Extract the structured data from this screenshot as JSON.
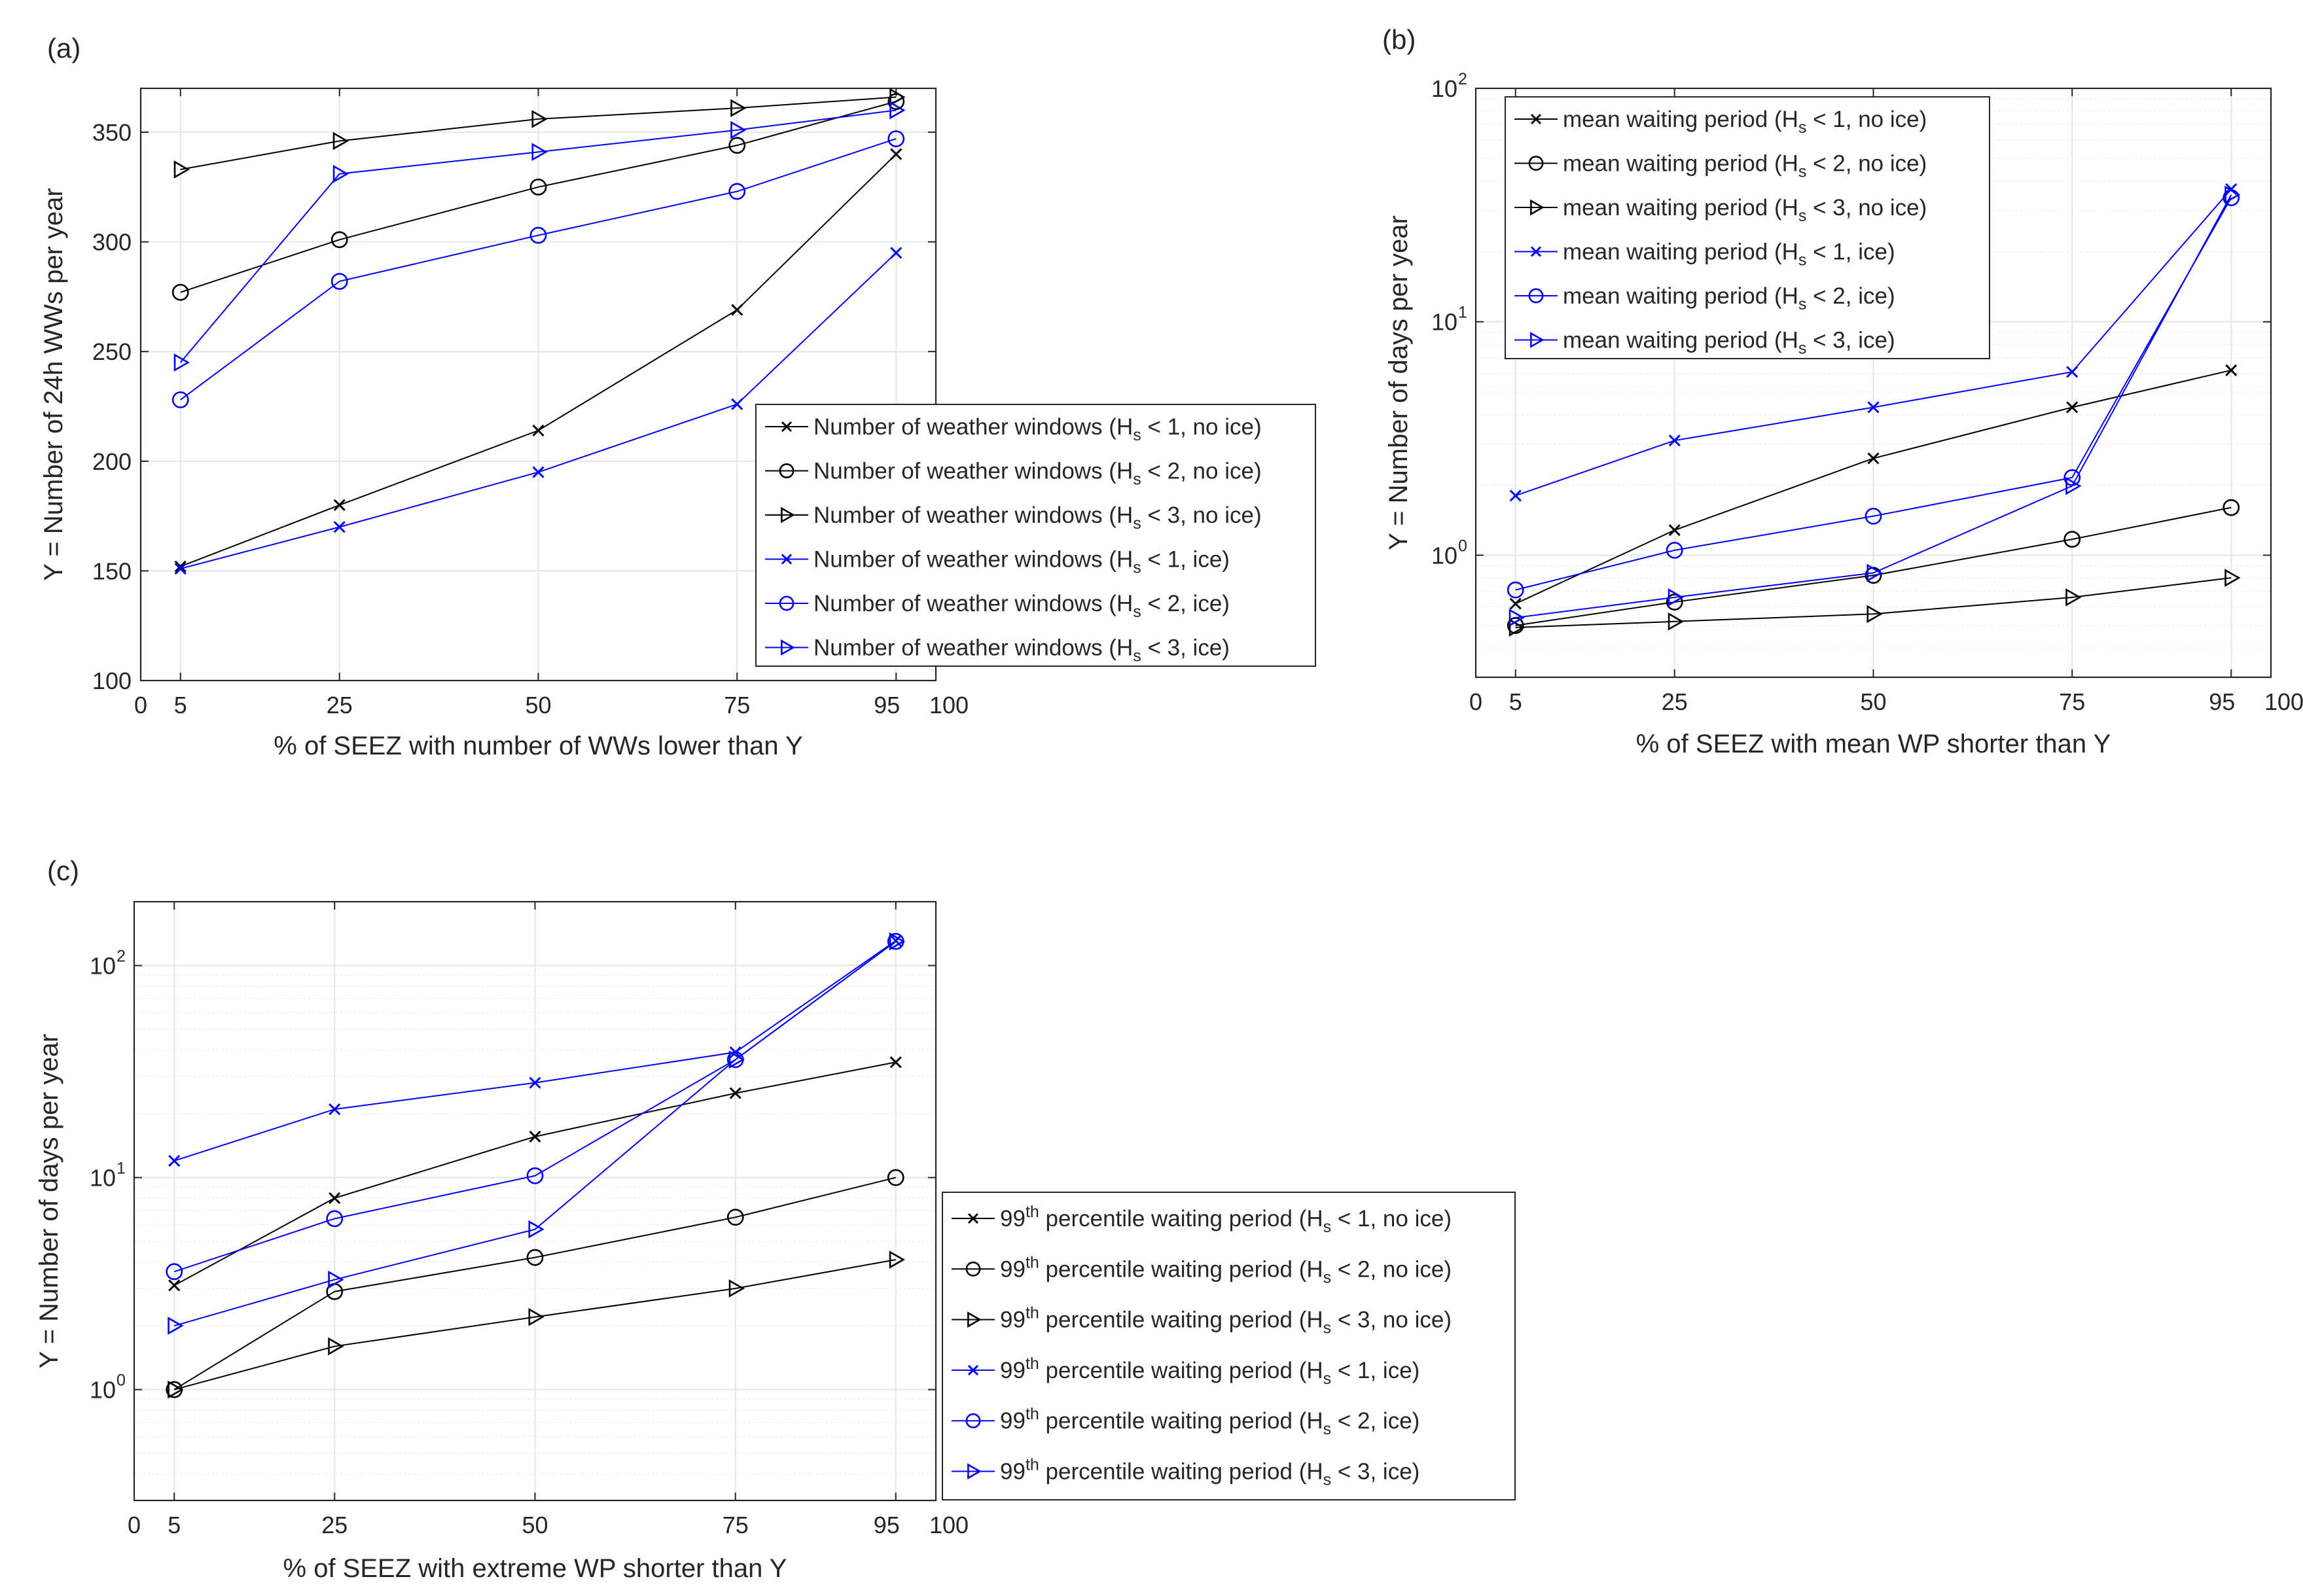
{
  "colors": {
    "black": "#000000",
    "blue": "#0000ff",
    "grid": "#e6e6e6",
    "axis": "#262626"
  },
  "chart_data": [
    {
      "id": "a",
      "panel_label": "(a)",
      "type": "line",
      "yscale": "linear",
      "xlim": [
        0,
        100
      ],
      "ylim": [
        100,
        370
      ],
      "xticks": [
        0,
        5,
        25,
        50,
        75,
        95,
        100
      ],
      "xtick_labels": [
        "0",
        "5",
        "25",
        "50",
        "75",
        "95",
        "100"
      ],
      "yticks": [
        100,
        150,
        200,
        250,
        300,
        350
      ],
      "ytick_labels": [
        "100",
        "150",
        "200",
        "250",
        "300",
        "350"
      ],
      "xlabel": "% of SEEZ with number of WWs lower than Y",
      "ylabel": "Y = Number of 24h WWs per year",
      "legend_position": "lower-right",
      "x": [
        5,
        25,
        50,
        75,
        95
      ],
      "series": [
        {
          "name": "Number of weather windows (H",
          "sub": "s",
          "tail": " < 1, no ice)",
          "color": "black",
          "marker": "x",
          "values": [
            152,
            180,
            214,
            269,
            340
          ]
        },
        {
          "name": "Number of weather windows (H",
          "sub": "s",
          "tail": " < 2, no ice)",
          "color": "black",
          "marker": "o",
          "values": [
            277,
            301,
            325,
            344,
            364
          ]
        },
        {
          "name": "Number of weather windows (H",
          "sub": "s",
          "tail": " < 3, no ice)",
          "color": "black",
          "marker": ">",
          "values": [
            333,
            346,
            356,
            361,
            366
          ]
        },
        {
          "name": "Number of weather windows (H",
          "sub": "s",
          "tail": " < 1, ice)",
          "color": "blue",
          "marker": "x",
          "values": [
            151,
            170,
            195,
            226,
            295
          ]
        },
        {
          "name": "Number of weather windows (H",
          "sub": "s",
          "tail": " < 2, ice)",
          "color": "blue",
          "marker": "o",
          "values": [
            228,
            282,
            303,
            323,
            347
          ]
        },
        {
          "name": "Number of weather windows (H",
          "sub": "s",
          "tail": " < 3, ice)",
          "color": "blue",
          "marker": ">",
          "values": [
            245,
            331,
            341,
            351,
            360
          ]
        }
      ]
    },
    {
      "id": "b",
      "panel_label": "(b)",
      "type": "line",
      "yscale": "log",
      "xlim": [
        0,
        100
      ],
      "ylim": [
        0.3,
        100
      ],
      "xticks": [
        0,
        5,
        25,
        50,
        75,
        95,
        100
      ],
      "xtick_labels": [
        "0",
        "5",
        "25",
        "50",
        "75",
        "95",
        "100"
      ],
      "yticks": [
        1,
        10,
        100
      ],
      "ytick_labels": [
        "10",
        "10",
        "10"
      ],
      "ytick_exponents": [
        "0",
        "1",
        "2"
      ],
      "xlabel": "% of SEEZ with mean WP shorter than Y",
      "ylabel": "Y = Number of days per year",
      "legend_position": "top-left",
      "x": [
        5,
        25,
        50,
        75,
        95
      ],
      "series": [
        {
          "name": "mean waiting period (H",
          "sub": "s",
          "tail": " < 1, no ice)",
          "color": "black",
          "marker": "x",
          "values": [
            0.62,
            1.28,
            2.6,
            4.3,
            6.2
          ]
        },
        {
          "name": "mean waiting period (H",
          "sub": "s",
          "tail": " < 2, no ice)",
          "color": "black",
          "marker": "o",
          "values": [
            0.5,
            0.63,
            0.82,
            1.17,
            1.6
          ]
        },
        {
          "name": "mean waiting period (H",
          "sub": "s",
          "tail": " < 3, no ice)",
          "color": "black",
          "marker": ">",
          "values": [
            0.49,
            0.52,
            0.56,
            0.66,
            0.8
          ]
        },
        {
          "name": "mean waiting period (H",
          "sub": "s",
          "tail": " < 1, ice)",
          "color": "blue",
          "marker": "x",
          "values": [
            1.8,
            3.1,
            4.3,
            6.1,
            37
          ]
        },
        {
          "name": "mean waiting period (H",
          "sub": "s",
          "tail": " < 2, ice)",
          "color": "blue",
          "marker": "o",
          "values": [
            0.71,
            1.05,
            1.47,
            2.15,
            34
          ]
        },
        {
          "name": "mean waiting period (H",
          "sub": "s",
          "tail": " < 3, ice)",
          "color": "blue",
          "marker": ">",
          "values": [
            0.54,
            0.66,
            0.84,
            1.98,
            35
          ]
        }
      ]
    },
    {
      "id": "c",
      "panel_label": "(c)",
      "type": "line",
      "yscale": "log",
      "xlim": [
        0,
        100
      ],
      "ylim": [
        0.3,
        200
      ],
      "xticks": [
        0,
        5,
        25,
        50,
        75,
        95,
        100
      ],
      "xtick_labels": [
        "0",
        "5",
        "25",
        "50",
        "75",
        "95",
        "100"
      ],
      "yticks": [
        1,
        10,
        100
      ],
      "ytick_labels": [
        "10",
        "10",
        "10"
      ],
      "ytick_exponents": [
        "0",
        "1",
        "2"
      ],
      "xlabel": "% of SEEZ with extreme WP shorter than Y",
      "ylabel": "Y = Number of days per year",
      "legend_position": "outside-right",
      "x": [
        5,
        25,
        50,
        75,
        95
      ],
      "series": [
        {
          "name": "99",
          "sup": "th",
          "mid": " percentile waiting period (H",
          "sub": "s",
          "tail": " < 1, no ice)",
          "color": "black",
          "marker": "x",
          "values": [
            3.1,
            8,
            15.6,
            25,
            35
          ]
        },
        {
          "name": "99",
          "sup": "th",
          "mid": " percentile waiting period (H",
          "sub": "s",
          "tail": " < 2, no ice)",
          "color": "black",
          "marker": "o",
          "values": [
            1,
            2.9,
            4.2,
            6.5,
            10
          ]
        },
        {
          "name": "99",
          "sup": "th",
          "mid": " percentile waiting period (H",
          "sub": "s",
          "tail": " < 3, no ice)",
          "color": "black",
          "marker": ">",
          "values": [
            1,
            1.6,
            2.2,
            3,
            4.1
          ]
        },
        {
          "name": "99",
          "sup": "th",
          "mid": " percentile waiting period (H",
          "sub": "s",
          "tail": " < 1, ice)",
          "color": "blue",
          "marker": "x",
          "values": [
            12,
            21,
            28,
            39,
            131
          ]
        },
        {
          "name": "99",
          "sup": "th",
          "mid": " percentile waiting period (H",
          "sub": "s",
          "tail": " < 2, ice)",
          "color": "blue",
          "marker": "o",
          "values": [
            3.6,
            6.4,
            10.2,
            36,
            130
          ]
        },
        {
          "name": "99",
          "sup": "th",
          "mid": " percentile waiting period (H",
          "sub": "s",
          "tail": " < 3, ice)",
          "color": "blue",
          "marker": ">",
          "values": [
            2,
            3.3,
            5.7,
            36,
            130
          ]
        }
      ]
    }
  ]
}
